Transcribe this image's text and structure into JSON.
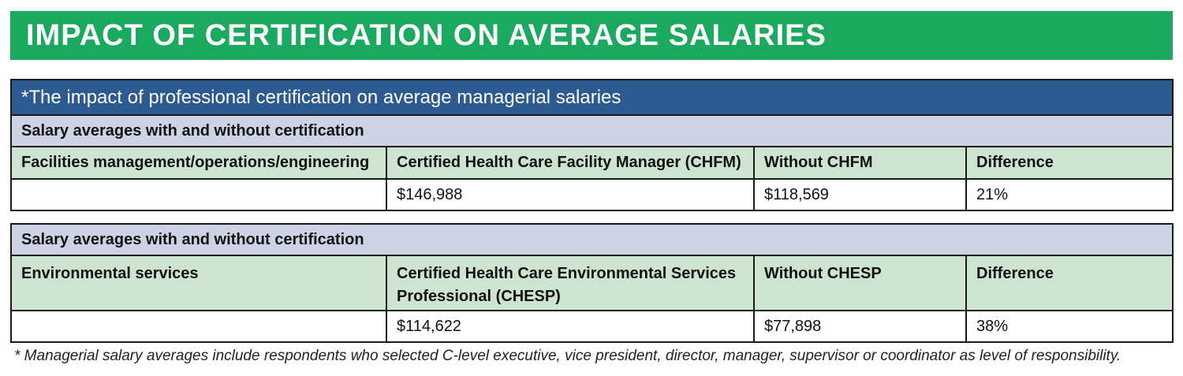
{
  "banner": {
    "title": "IMPACT OF CERTIFICATION ON AVERAGE SALARIES"
  },
  "table": {
    "title": "*The impact of professional certification on average managerial salaries",
    "sections": [
      {
        "subtitle": "Salary averages with and without certification",
        "headers": [
          "Facilities management/operations/engineering",
          "Certified Health Care Facility Manager (CHFM)",
          "Without CHFM",
          "Difference"
        ],
        "values": [
          "",
          "$146,988",
          "$118,569",
          "21%"
        ]
      },
      {
        "subtitle": "Salary averages with and without certification",
        "headers": [
          "Environmental services",
          "Certified Health Care Environmental Services Professional (CHESP)",
          "Without CHESP",
          "Difference"
        ],
        "values": [
          "",
          "$114,622",
          "$77,898",
          "38%"
        ]
      }
    ]
  },
  "footnote": "* Managerial salary averages include respondents who selected C-level executive, vice president, director, manager, supervisor or coordinator as level of responsibility.",
  "colors": {
    "banner": "#1ba95f",
    "title_row": "#2e5a92",
    "subtitle_row": "#cdd2e4",
    "header_row": "#cde5d0"
  }
}
